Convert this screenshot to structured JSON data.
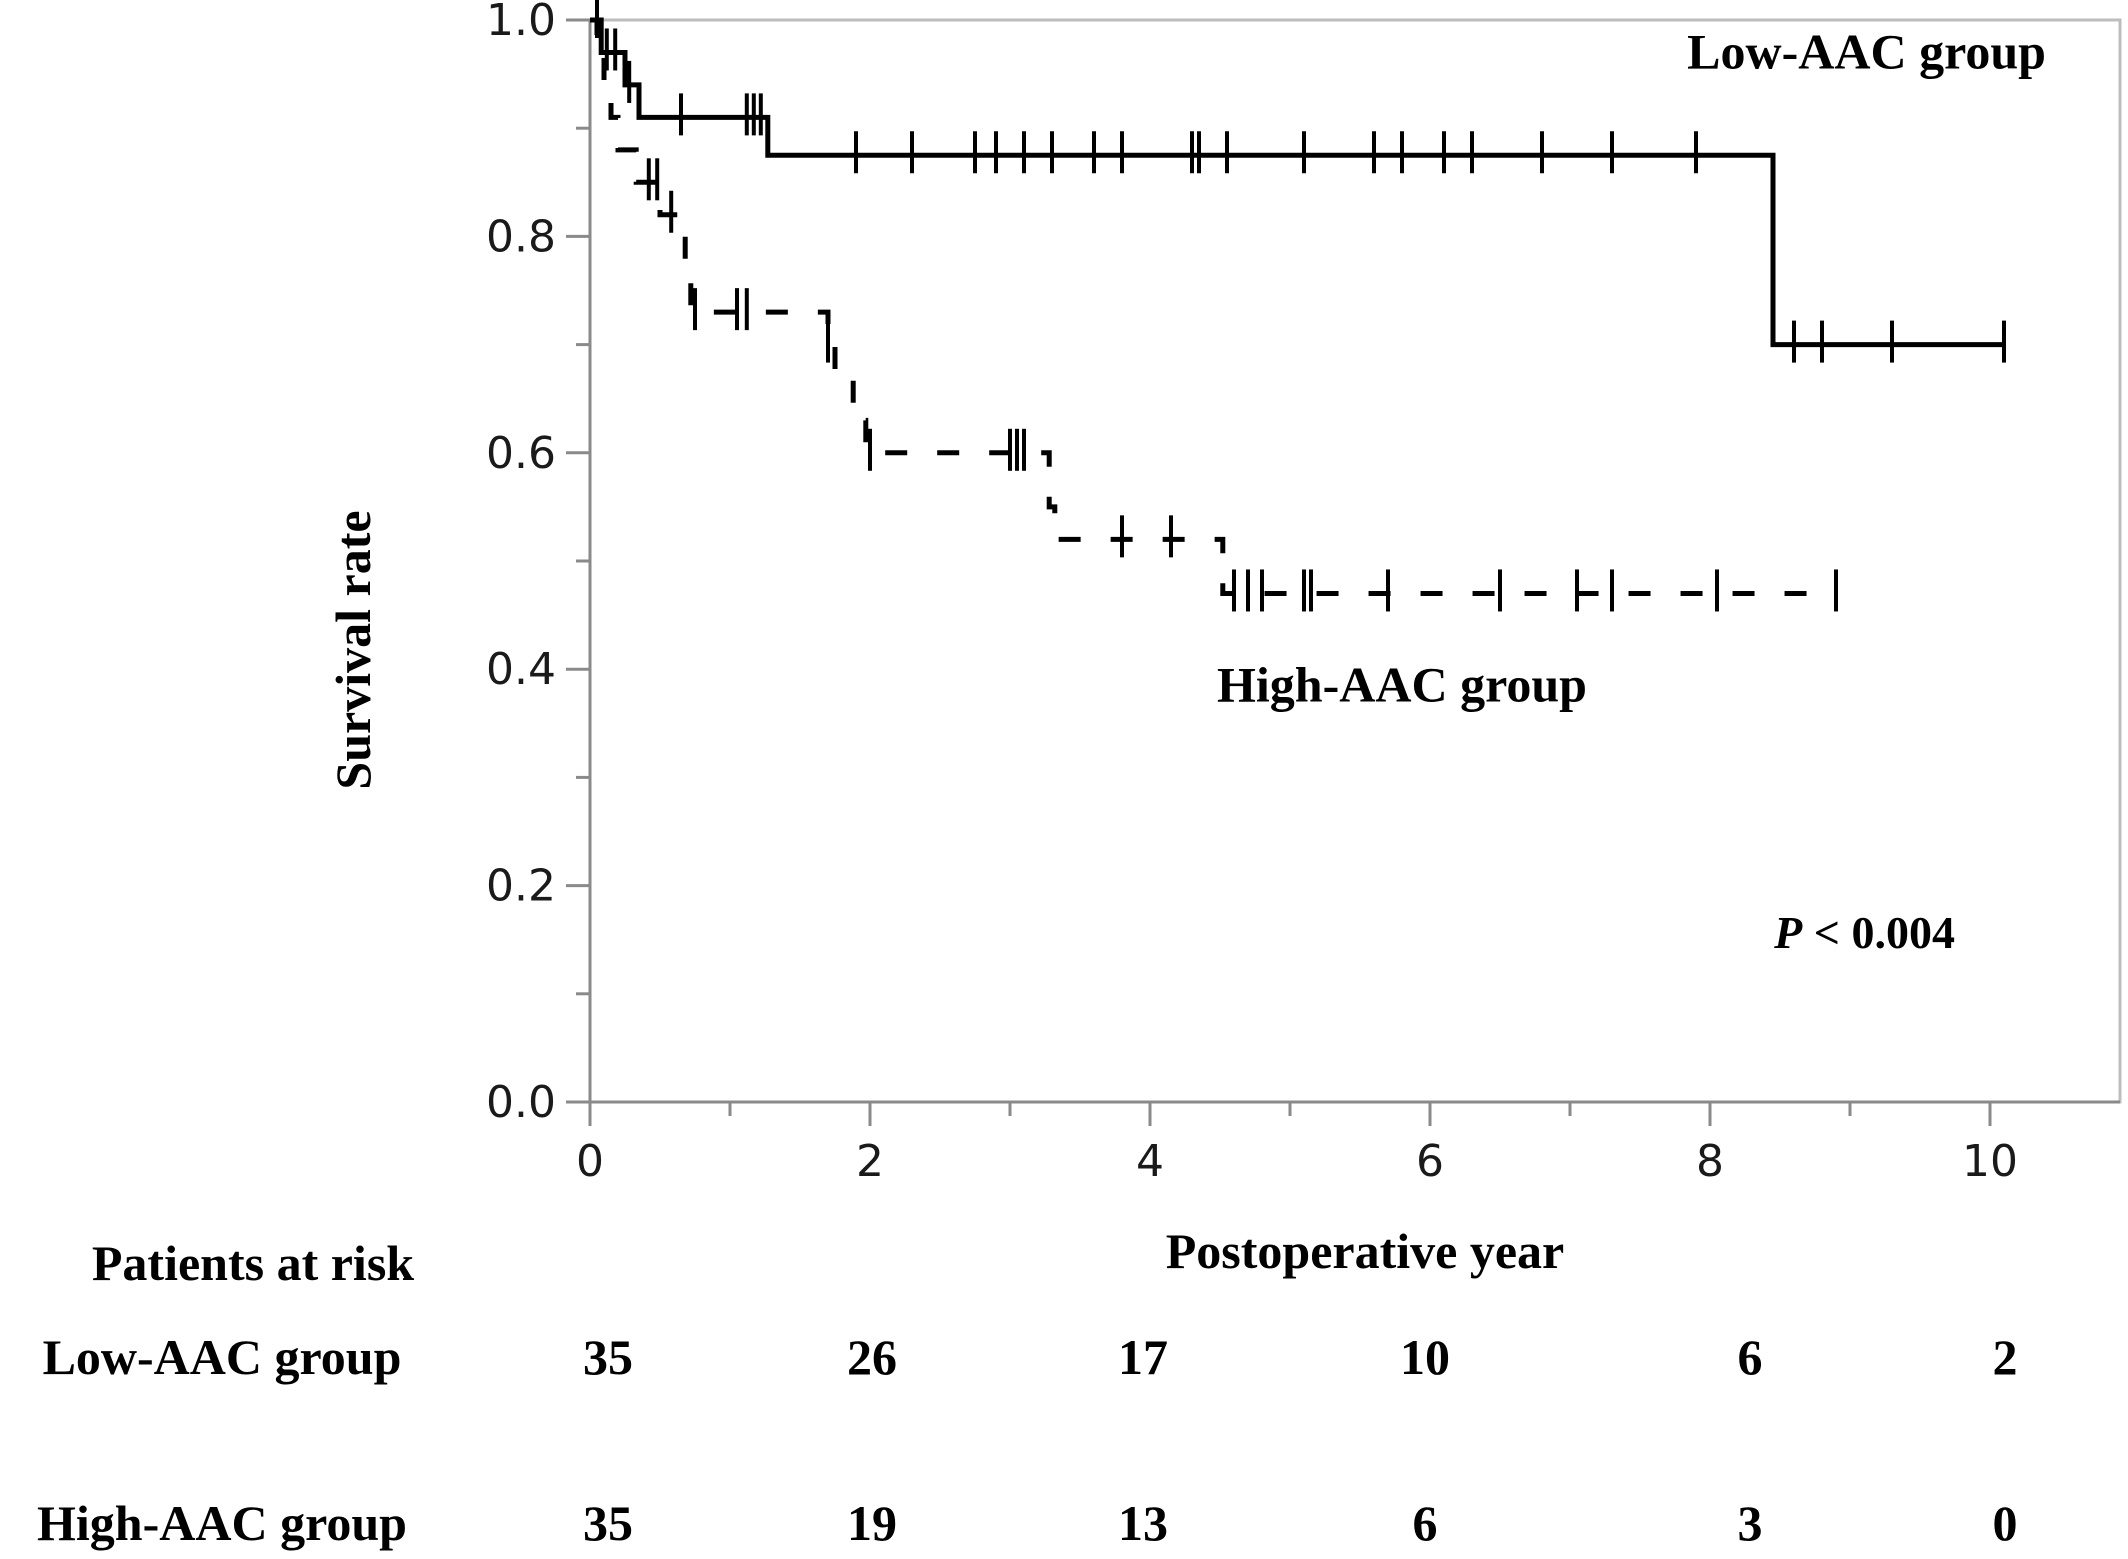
{
  "chart_data": {
    "type": "line",
    "subtype": "kaplan-meier",
    "title": "",
    "xlabel": "Postoperative year",
    "ylabel": "Survival rate",
    "xlim": [
      0,
      11
    ],
    "ylim": [
      0,
      1
    ],
    "x_ticks": [
      0,
      2,
      4,
      6,
      8,
      10
    ],
    "y_ticks": [
      "0.0",
      "0.2",
      "0.4",
      "0.6",
      "0.8",
      "1.0"
    ],
    "x_minor_step": 1,
    "y_minor_step": 0.1,
    "grid": false,
    "annotation": {
      "italic": "P",
      "rest": " < 0.004"
    },
    "series": [
      {
        "name": "Low-AAC group",
        "line_style": "solid",
        "color": "#000000",
        "steps": [
          [
            0,
            1.0
          ],
          [
            0.08,
            0.97
          ],
          [
            0.25,
            0.94
          ],
          [
            0.35,
            0.91
          ],
          [
            1.27,
            0.875
          ],
          [
            8.45,
            0.7
          ],
          [
            10.1,
            0.7
          ]
        ],
        "censor_times": [
          0.05,
          0.12,
          0.18,
          0.28,
          0.65,
          1.12,
          1.17,
          1.22,
          1.9,
          2.3,
          2.75,
          2.9,
          3.1,
          3.3,
          3.6,
          3.8,
          4.3,
          4.35,
          4.55,
          5.1,
          5.6,
          5.8,
          6.1,
          6.3,
          6.8,
          7.3,
          7.9,
          8.6,
          8.8,
          9.3,
          10.1
        ]
      },
      {
        "name": "High-AAC group",
        "line_style": "dashed",
        "color": "#000000",
        "steps": [
          [
            0,
            1.0
          ],
          [
            0.05,
            0.97
          ],
          [
            0.1,
            0.94
          ],
          [
            0.15,
            0.91
          ],
          [
            0.2,
            0.88
          ],
          [
            0.33,
            0.85
          ],
          [
            0.5,
            0.82
          ],
          [
            0.68,
            0.76
          ],
          [
            0.72,
            0.73
          ],
          [
            1.7,
            0.7
          ],
          [
            1.75,
            0.67
          ],
          [
            1.88,
            0.63
          ],
          [
            1.97,
            0.6
          ],
          [
            3.28,
            0.55
          ],
          [
            3.32,
            0.52
          ],
          [
            4.52,
            0.47
          ],
          [
            8.9,
            0.47
          ]
        ],
        "censor_times": [
          0.42,
          0.48,
          0.58,
          0.75,
          1.05,
          1.12,
          1.7,
          2.0,
          3.0,
          3.05,
          3.1,
          3.8,
          4.15,
          4.6,
          4.7,
          4.8,
          5.1,
          5.15,
          5.7,
          6.5,
          7.05,
          7.3,
          8.05,
          8.9
        ]
      }
    ],
    "legend_labels": [
      {
        "text": "Low-AAC group",
        "at": [
          10.4,
          0.955
        ],
        "anchor": "end"
      },
      {
        "text": "High-AAC group",
        "at": [
          5.8,
          0.37
        ],
        "anchor": "middle"
      }
    ]
  },
  "risk_table": {
    "title": "Patients at risk",
    "rows": [
      {
        "label": "Low-AAC group",
        "values": [
          "35",
          "26",
          "17",
          "10",
          "6",
          "2"
        ]
      },
      {
        "label": "High-AAC group",
        "values": [
          "35",
          "19",
          "13",
          "6",
          "3",
          "0"
        ]
      }
    ]
  }
}
